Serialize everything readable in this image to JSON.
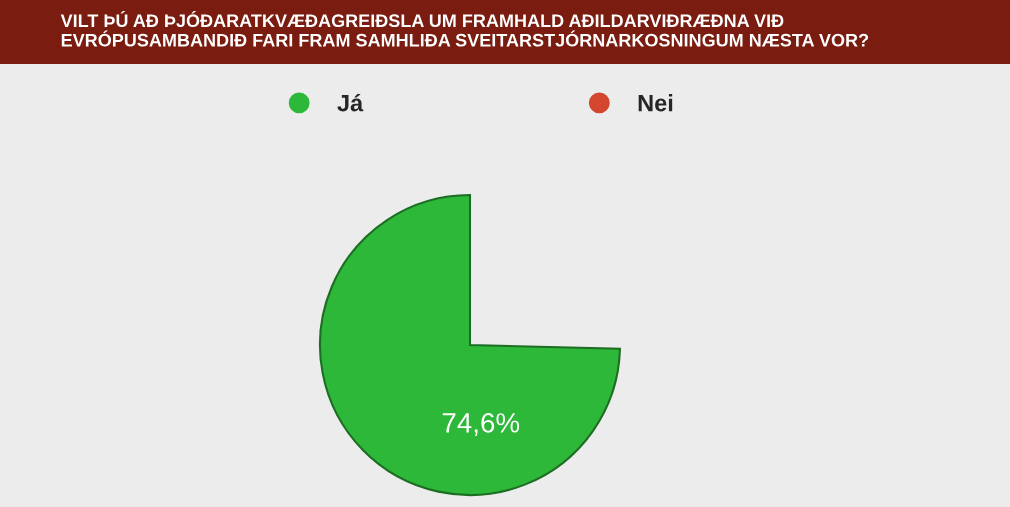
{
  "chart_data": {
    "type": "pie",
    "title": "VILT ÞÚ AÐ ÞJÓÐARATKVÆÐAGREIÐSLA UM FRAMHALD AÐILDARVIÐRÆÐNA VIÐ\nEVRÓPUSAMBANDIÐ FARI FRAM SAMHLIÐA SVEITARSTJÓRNARKOSNINGUM NÆSTA VOR?",
    "categories": [
      "Já",
      "Nei"
    ],
    "values": [
      74.6,
      null
    ],
    "colors": [
      "#2db83a",
      "#d2472e"
    ],
    "value_labels": [
      "74,6%",
      null
    ],
    "legend": "top"
  }
}
